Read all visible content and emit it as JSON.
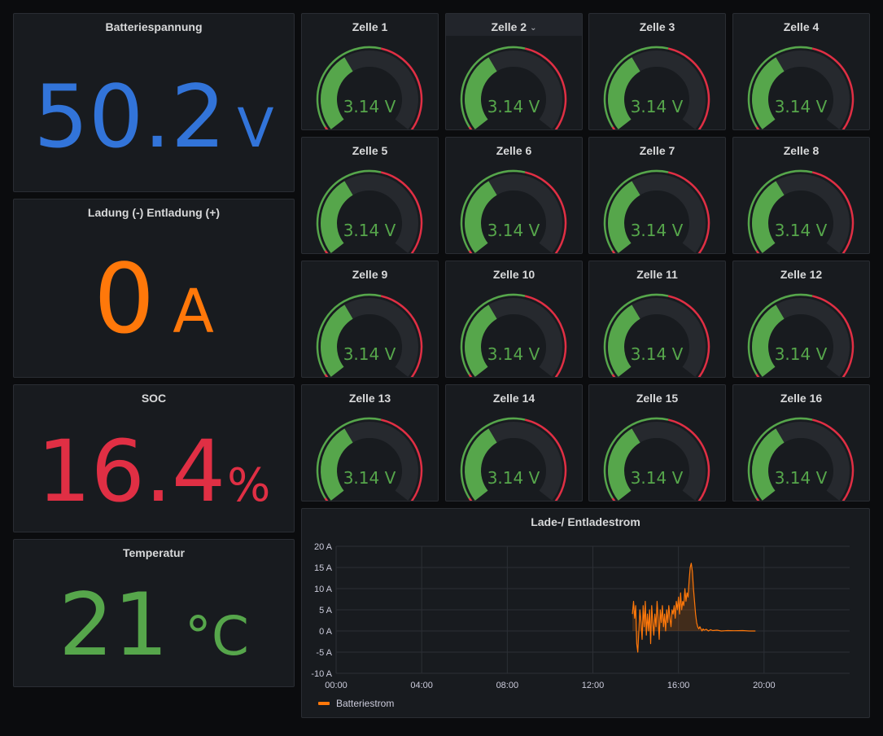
{
  "stats": {
    "voltage": {
      "title": "Batteriespannung",
      "value": "50.2",
      "unit": "V",
      "color": "#3274d9"
    },
    "current": {
      "title": "Ladung (-) Entladung (+)",
      "value": "0",
      "unit": "A",
      "color": "#ff780a"
    },
    "soc": {
      "title": "SOC",
      "value": "16.4",
      "unit": "%",
      "color": "#e02f44"
    },
    "temp": {
      "title": "Temperatur",
      "value": "21",
      "unit": "°C",
      "color": "#56a64b"
    }
  },
  "cells": [
    {
      "title": "Zelle 1",
      "value": "3.14 V",
      "level": 0.38
    },
    {
      "title": "Zelle 2",
      "value": "3.14 V",
      "level": 0.38
    },
    {
      "title": "Zelle 3",
      "value": "3.14 V",
      "level": 0.38
    },
    {
      "title": "Zelle 4",
      "value": "3.14 V",
      "level": 0.38
    },
    {
      "title": "Zelle 5",
      "value": "3.14 V",
      "level": 0.38
    },
    {
      "title": "Zelle 6",
      "value": "3.14 V",
      "level": 0.38
    },
    {
      "title": "Zelle 7",
      "value": "3.14 V",
      "level": 0.38
    },
    {
      "title": "Zelle 8",
      "value": "3.14 V",
      "level": 0.38
    },
    {
      "title": "Zelle 9",
      "value": "3.14 V",
      "level": 0.38
    },
    {
      "title": "Zelle 10",
      "value": "3.14 V",
      "level": 0.38
    },
    {
      "title": "Zelle 11",
      "value": "3.14 V",
      "level": 0.38
    },
    {
      "title": "Zelle 12",
      "value": "3.14 V",
      "level": 0.38
    },
    {
      "title": "Zelle 13",
      "value": "3.14 V",
      "level": 0.38
    },
    {
      "title": "Zelle 14",
      "value": "3.14 V",
      "level": 0.38
    },
    {
      "title": "Zelle 15",
      "value": "3.14 V",
      "level": 0.38
    },
    {
      "title": "Zelle 16",
      "value": "3.14 V",
      "level": 0.38
    }
  ],
  "gauge_colors": {
    "ok": "#56a64b",
    "warn": "#e02f44",
    "track": "#26292e"
  },
  "chart_data": {
    "type": "line",
    "title": "Lade-/ Entladestrom",
    "ylabel": "",
    "xlabel": "",
    "ylim": [
      -10,
      20
    ],
    "yticks": [
      "20 A",
      "15 A",
      "10 A",
      "5 A",
      "0 A",
      "-5 A",
      "-10 A"
    ],
    "xticks": [
      "00:00",
      "04:00",
      "08:00",
      "12:00",
      "16:00",
      "20:00"
    ],
    "xlim_hours": [
      0,
      24
    ],
    "grid": true,
    "legend_placement": "bottom-left",
    "series": [
      {
        "name": "Batteriestrom",
        "color": "#ff780a",
        "x_hours": [
          13.85,
          13.9,
          13.95,
          14.0,
          14.05,
          14.1,
          14.15,
          14.2,
          14.25,
          14.3,
          14.35,
          14.4,
          14.45,
          14.5,
          14.55,
          14.6,
          14.65,
          14.7,
          14.75,
          14.8,
          14.85,
          14.9,
          14.95,
          15.0,
          15.05,
          15.1,
          15.15,
          15.2,
          15.25,
          15.3,
          15.35,
          15.4,
          15.45,
          15.5,
          15.55,
          15.6,
          15.65,
          15.7,
          15.75,
          15.8,
          15.85,
          15.9,
          15.95,
          16.0,
          16.05,
          16.1,
          16.15,
          16.2,
          16.25,
          16.3,
          16.35,
          16.4,
          16.45,
          16.5,
          16.55,
          16.6,
          16.65,
          16.7,
          16.75,
          16.8,
          16.85,
          16.9,
          16.95,
          17.0,
          17.05,
          17.1,
          17.15,
          17.2,
          17.3,
          17.4,
          17.5,
          17.6,
          17.8,
          18.0,
          18.3,
          18.6,
          19.0,
          19.3,
          19.6
        ],
        "values": [
          4,
          7,
          3,
          6,
          -3,
          -5,
          0,
          5,
          2,
          -2,
          6,
          1,
          7,
          -1,
          4,
          0,
          5,
          -3,
          6,
          2,
          -1,
          4,
          1,
          7,
          3,
          -2,
          5,
          2,
          6,
          1,
          4,
          0,
          5,
          2,
          6,
          3,
          1,
          5,
          4,
          6,
          3,
          7,
          5,
          8,
          4,
          9,
          5,
          7,
          6,
          10,
          7,
          9,
          8,
          12,
          15,
          16,
          14,
          10,
          7,
          4,
          2,
          1,
          0.5,
          1,
          0.5,
          0,
          0.5,
          0.2,
          0.4,
          0,
          0.3,
          0.1,
          0.2,
          0,
          0.1,
          0.05,
          0.1,
          0,
          0
        ]
      }
    ]
  }
}
